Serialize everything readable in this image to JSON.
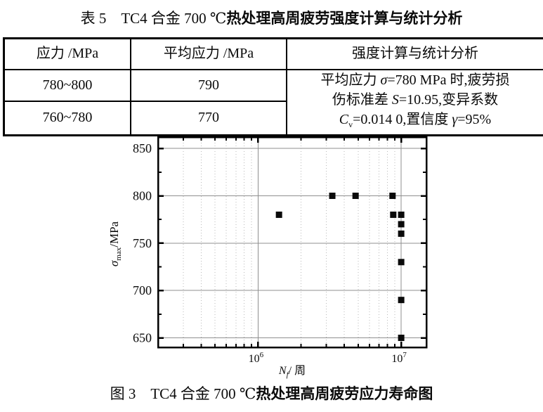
{
  "page": {
    "table_title": {
      "prefix": "表 5　TC4 合金 700 ℃",
      "emphasis": "热处理高周疲劳强度计算与统计分析"
    },
    "figure_caption": {
      "prefix": "图 3　TC4 合金 700 ℃",
      "emphasis": "热处理高周疲劳应力寿命图"
    }
  },
  "table": {
    "headers": [
      "应力 /MPa",
      "平均应力 /MPa",
      "强度计算与统计分析"
    ],
    "rows": [
      [
        "780~800",
        "790"
      ],
      [
        "760~780",
        "770"
      ]
    ],
    "analysis_lines": [
      {
        "a": "平均应力 ",
        "b": "σ",
        "c": "=780 MPa 时,疲劳损"
      },
      {
        "a": "伤标准差 ",
        "b": "S",
        "c": "=10.95,变异系数"
      },
      {
        "a": "C",
        "sub": "v",
        "b": "=0.014 0,置信度 ",
        "c": "γ",
        "d": "=95%"
      }
    ]
  },
  "chart_data": {
    "type": "scatter",
    "title": "",
    "xlabel_parts": [
      {
        "t": "N",
        "italic": true
      },
      {
        "t": "f",
        "sub": true,
        "italic": true
      },
      {
        "t": "/ 周"
      }
    ],
    "ylabel_parts": [
      {
        "t": "σ",
        "italic": true
      },
      {
        "t": "max",
        "sub": true
      },
      {
        "t": "/MPa"
      }
    ],
    "x_scale": "log",
    "xlim": [
      200000,
      15000000
    ],
    "ylim": [
      640,
      862
    ],
    "x_major_ticks": [
      1000000,
      10000000
    ],
    "y_major_ticks": [
      650,
      700,
      750,
      800,
      850
    ],
    "y_minor_step": 25,
    "grid": true,
    "legend": false,
    "marker": "square",
    "marker_color": "#0a0a0a",
    "marker_size": 9,
    "colors": {
      "grid": "#8f8f8f",
      "grid_minor": "#b9b9b9",
      "axis": "#000000"
    },
    "points": [
      [
        1400000,
        780
      ],
      [
        3300000,
        800
      ],
      [
        4800000,
        800
      ],
      [
        8700000,
        800
      ],
      [
        8800000,
        780
      ],
      [
        10000000,
        780
      ],
      [
        10000000,
        770
      ],
      [
        10000000,
        760
      ],
      [
        10000000,
        730
      ],
      [
        10000000,
        690
      ],
      [
        10000000,
        650
      ]
    ]
  }
}
